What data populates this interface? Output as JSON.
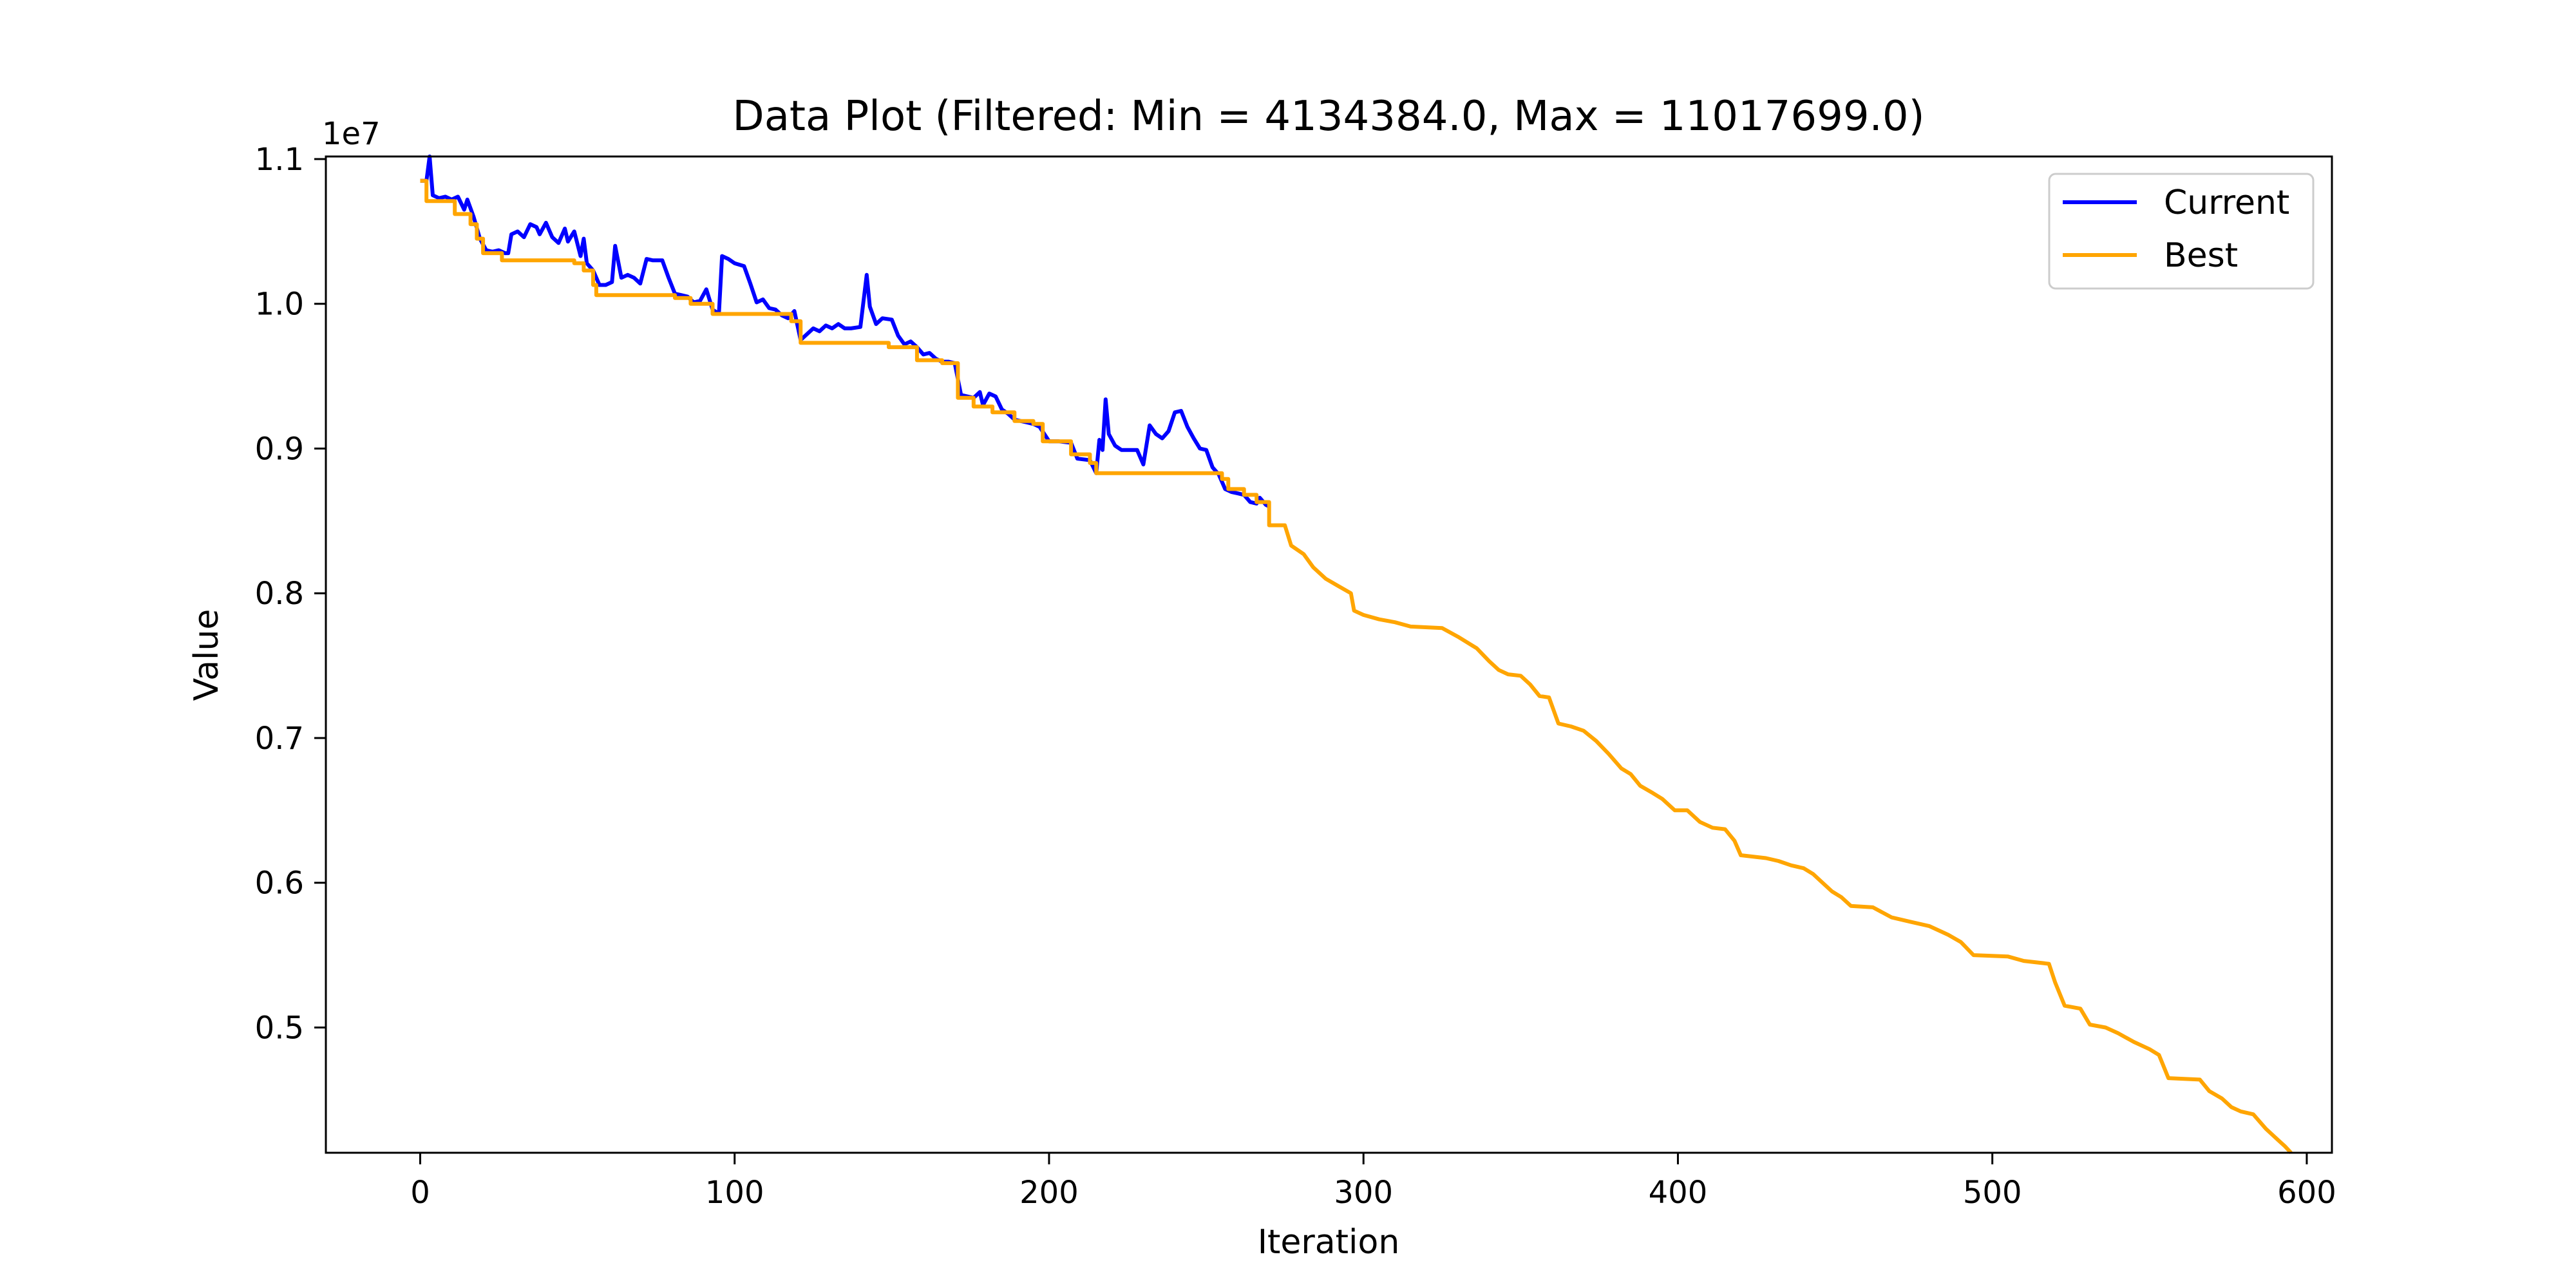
{
  "chart_data": {
    "type": "line",
    "title": "Data Plot (Filtered: Min = 4134384.0, Max = 11017699.0)",
    "xlabel": "Iteration",
    "ylabel": "Value",
    "y_scale_label": "1e7",
    "xlim": [
      -30,
      608
    ],
    "ylim": [
      4134384,
      11017699
    ],
    "x_ticks": [
      0,
      100,
      200,
      300,
      400,
      500,
      600
    ],
    "x_tick_labels": [
      "0",
      "100",
      "200",
      "300",
      "400",
      "500",
      "600"
    ],
    "y_ticks": [
      5000000,
      6000000,
      7000000,
      8000000,
      9000000,
      10000000,
      11000000
    ],
    "y_tick_labels": [
      "0.5",
      "0.6",
      "0.7",
      "0.8",
      "0.9",
      "1.0",
      "1.1"
    ],
    "grid": false,
    "legend_position": "top-right",
    "series": [
      {
        "name": "Current",
        "color": "#0000ff",
        "points": [
          [
            0,
            10850000
          ],
          [
            2,
            10850000
          ],
          [
            3,
            11017699
          ],
          [
            4,
            10750000
          ],
          [
            6,
            10730000
          ],
          [
            8,
            10740000
          ],
          [
            10,
            10720000
          ],
          [
            12,
            10740000
          ],
          [
            14,
            10650000
          ],
          [
            15,
            10720000
          ],
          [
            17,
            10600000
          ],
          [
            19,
            10450000
          ],
          [
            21,
            10370000
          ],
          [
            23,
            10360000
          ],
          [
            25,
            10370000
          ],
          [
            27,
            10350000
          ],
          [
            28,
            10350000
          ],
          [
            29,
            10480000
          ],
          [
            31,
            10500000
          ],
          [
            33,
            10460000
          ],
          [
            35,
            10550000
          ],
          [
            37,
            10530000
          ],
          [
            38,
            10480000
          ],
          [
            40,
            10560000
          ],
          [
            42,
            10460000
          ],
          [
            44,
            10420000
          ],
          [
            46,
            10520000
          ],
          [
            47,
            10430000
          ],
          [
            49,
            10500000
          ],
          [
            51,
            10330000
          ],
          [
            52,
            10450000
          ],
          [
            53,
            10280000
          ],
          [
            55,
            10230000
          ],
          [
            57,
            10130000
          ],
          [
            59,
            10130000
          ],
          [
            61,
            10150000
          ],
          [
            62,
            10400000
          ],
          [
            64,
            10180000
          ],
          [
            66,
            10200000
          ],
          [
            68,
            10180000
          ],
          [
            70,
            10140000
          ],
          [
            72,
            10310000
          ],
          [
            74,
            10300000
          ],
          [
            77,
            10300000
          ],
          [
            79,
            10180000
          ],
          [
            81,
            10070000
          ],
          [
            83,
            10060000
          ],
          [
            85,
            10050000
          ],
          [
            87,
            10010000
          ],
          [
            89,
            10020000
          ],
          [
            91,
            10100000
          ],
          [
            93,
            9960000
          ],
          [
            95,
            9930000
          ],
          [
            96,
            10330000
          ],
          [
            98,
            10310000
          ],
          [
            100,
            10280000
          ],
          [
            103,
            10260000
          ],
          [
            105,
            10140000
          ],
          [
            107,
            10010000
          ],
          [
            109,
            10030000
          ],
          [
            111,
            9970000
          ],
          [
            113,
            9960000
          ],
          [
            115,
            9920000
          ],
          [
            117,
            9900000
          ],
          [
            119,
            9950000
          ],
          [
            121,
            9750000
          ],
          [
            123,
            9790000
          ],
          [
            125,
            9830000
          ],
          [
            127,
            9810000
          ],
          [
            129,
            9850000
          ],
          [
            131,
            9830000
          ],
          [
            133,
            9860000
          ],
          [
            135,
            9830000
          ],
          [
            137,
            9830000
          ],
          [
            140,
            9840000
          ],
          [
            142,
            10200000
          ],
          [
            143,
            9980000
          ],
          [
            145,
            9860000
          ],
          [
            147,
            9900000
          ],
          [
            150,
            9890000
          ],
          [
            152,
            9780000
          ],
          [
            154,
            9720000
          ],
          [
            156,
            9740000
          ],
          [
            158,
            9700000
          ],
          [
            160,
            9650000
          ],
          [
            162,
            9660000
          ],
          [
            164,
            9620000
          ],
          [
            166,
            9600000
          ],
          [
            168,
            9600000
          ],
          [
            170,
            9590000
          ],
          [
            172,
            9370000
          ],
          [
            174,
            9360000
          ],
          [
            176,
            9350000
          ],
          [
            178,
            9390000
          ],
          [
            179,
            9300000
          ],
          [
            181,
            9380000
          ],
          [
            183,
            9360000
          ],
          [
            185,
            9270000
          ],
          [
            187,
            9240000
          ],
          [
            189,
            9200000
          ],
          [
            191,
            9190000
          ],
          [
            193,
            9180000
          ],
          [
            195,
            9170000
          ],
          [
            197,
            9150000
          ],
          [
            200,
            9050000
          ],
          [
            203,
            9050000
          ],
          [
            207,
            9040000
          ],
          [
            209,
            8930000
          ],
          [
            213,
            8920000
          ],
          [
            215,
            8830000
          ],
          [
            216,
            9060000
          ],
          [
            217,
            8990000
          ],
          [
            218,
            9340000
          ],
          [
            219,
            9100000
          ],
          [
            221,
            9020000
          ],
          [
            223,
            8990000
          ],
          [
            226,
            8990000
          ],
          [
            228,
            8990000
          ],
          [
            230,
            8890000
          ],
          [
            232,
            9160000
          ],
          [
            234,
            9100000
          ],
          [
            236,
            9070000
          ],
          [
            238,
            9120000
          ],
          [
            240,
            9250000
          ],
          [
            242,
            9260000
          ],
          [
            244,
            9150000
          ],
          [
            246,
            9070000
          ],
          [
            248,
            9000000
          ],
          [
            250,
            8990000
          ],
          [
            252,
            8870000
          ],
          [
            254,
            8820000
          ],
          [
            256,
            8720000
          ],
          [
            258,
            8700000
          ],
          [
            260,
            8690000
          ],
          [
            262,
            8680000
          ],
          [
            264,
            8630000
          ],
          [
            266,
            8620000
          ],
          [
            267,
            8660000
          ],
          [
            269,
            8610000
          ],
          [
            270,
            8600000
          ]
        ]
      },
      {
        "name": "Best",
        "color": "#ffa500",
        "points": [
          [
            0,
            10850000
          ],
          [
            2,
            10850000
          ],
          [
            2,
            10710000
          ],
          [
            11,
            10710000
          ],
          [
            11,
            10620000
          ],
          [
            16,
            10620000
          ],
          [
            16,
            10550000
          ],
          [
            18,
            10550000
          ],
          [
            18,
            10450000
          ],
          [
            20,
            10450000
          ],
          [
            20,
            10350000
          ],
          [
            26,
            10350000
          ],
          [
            26,
            10300000
          ],
          [
            49,
            10300000
          ],
          [
            49,
            10280000
          ],
          [
            52,
            10280000
          ],
          [
            52,
            10230000
          ],
          [
            55,
            10230000
          ],
          [
            55,
            10130000
          ],
          [
            56,
            10130000
          ],
          [
            56,
            10060000
          ],
          [
            81,
            10060000
          ],
          [
            81,
            10040000
          ],
          [
            86,
            10040000
          ],
          [
            86,
            10000000
          ],
          [
            93,
            10000000
          ],
          [
            93,
            9930000
          ],
          [
            118,
            9930000
          ],
          [
            118,
            9880000
          ],
          [
            121,
            9880000
          ],
          [
            121,
            9730000
          ],
          [
            149,
            9730000
          ],
          [
            149,
            9700000
          ],
          [
            158,
            9700000
          ],
          [
            158,
            9610000
          ],
          [
            166,
            9610000
          ],
          [
            166,
            9590000
          ],
          [
            171,
            9590000
          ],
          [
            171,
            9350000
          ],
          [
            176,
            9350000
          ],
          [
            176,
            9290000
          ],
          [
            182,
            9290000
          ],
          [
            182,
            9250000
          ],
          [
            189,
            9250000
          ],
          [
            189,
            9190000
          ],
          [
            195,
            9190000
          ],
          [
            195,
            9170000
          ],
          [
            198,
            9170000
          ],
          [
            198,
            9050000
          ],
          [
            207,
            9050000
          ],
          [
            207,
            8960000
          ],
          [
            213,
            8960000
          ],
          [
            213,
            8900000
          ],
          [
            215,
            8900000
          ],
          [
            215,
            8830000
          ],
          [
            255,
            8830000
          ],
          [
            255,
            8790000
          ],
          [
            257,
            8790000
          ],
          [
            257,
            8720000
          ],
          [
            262,
            8720000
          ],
          [
            262,
            8680000
          ],
          [
            266,
            8680000
          ],
          [
            266,
            8630000
          ],
          [
            270,
            8630000
          ],
          [
            270,
            8470000
          ],
          [
            275,
            8470000
          ],
          [
            277,
            8330000
          ],
          [
            281,
            8270000
          ],
          [
            284,
            8180000
          ],
          [
            288,
            8100000
          ],
          [
            292,
            8050000
          ],
          [
            296,
            8000000
          ],
          [
            297,
            7880000
          ],
          [
            300,
            7850000
          ],
          [
            305,
            7820000
          ],
          [
            310,
            7800000
          ],
          [
            315,
            7770000
          ],
          [
            325,
            7760000
          ],
          [
            330,
            7700000
          ],
          [
            333,
            7660000
          ],
          [
            336,
            7620000
          ],
          [
            340,
            7530000
          ],
          [
            343,
            7470000
          ],
          [
            346,
            7440000
          ],
          [
            350,
            7430000
          ],
          [
            353,
            7370000
          ],
          [
            356,
            7290000
          ],
          [
            359,
            7280000
          ],
          [
            362,
            7100000
          ],
          [
            366,
            7080000
          ],
          [
            370,
            7050000
          ],
          [
            374,
            6980000
          ],
          [
            378,
            6890000
          ],
          [
            382,
            6790000
          ],
          [
            385,
            6750000
          ],
          [
            388,
            6670000
          ],
          [
            392,
            6620000
          ],
          [
            395,
            6580000
          ],
          [
            399,
            6500000
          ],
          [
            403,
            6500000
          ],
          [
            407,
            6420000
          ],
          [
            411,
            6380000
          ],
          [
            415,
            6370000
          ],
          [
            418,
            6290000
          ],
          [
            420,
            6190000
          ],
          [
            428,
            6170000
          ],
          [
            432,
            6150000
          ],
          [
            436,
            6120000
          ],
          [
            440,
            6100000
          ],
          [
            443,
            6060000
          ],
          [
            446,
            6000000
          ],
          [
            449,
            5940000
          ],
          [
            452,
            5900000
          ],
          [
            455,
            5840000
          ],
          [
            462,
            5830000
          ],
          [
            468,
            5760000
          ],
          [
            474,
            5730000
          ],
          [
            480,
            5700000
          ],
          [
            484,
            5660000
          ],
          [
            486,
            5640000
          ],
          [
            490,
            5590000
          ],
          [
            494,
            5500000
          ],
          [
            505,
            5490000
          ],
          [
            510,
            5460000
          ],
          [
            518,
            5440000
          ],
          [
            520,
            5310000
          ],
          [
            523,
            5150000
          ],
          [
            528,
            5130000
          ],
          [
            531,
            5020000
          ],
          [
            536,
            5000000
          ],
          [
            540,
            4960000
          ],
          [
            545,
            4900000
          ],
          [
            550,
            4850000
          ],
          [
            553,
            4810000
          ],
          [
            556,
            4650000
          ],
          [
            566,
            4640000
          ],
          [
            569,
            4560000
          ],
          [
            573,
            4510000
          ],
          [
            576,
            4450000
          ],
          [
            579,
            4420000
          ],
          [
            583,
            4400000
          ],
          [
            587,
            4300000
          ],
          [
            591,
            4220000
          ],
          [
            593,
            4180000
          ],
          [
            595,
            4134384
          ]
        ]
      }
    ]
  }
}
